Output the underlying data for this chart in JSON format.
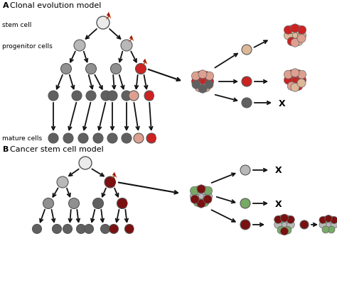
{
  "title_a": "A   Clonal evolution model",
  "title_b": "B   Cancer stem cell model",
  "label_stem": "stem cell",
  "label_prog": "progenitor cells",
  "label_mature": "mature cells",
  "colors": {
    "white_cell": "#ebebeb",
    "light_gray": "#b8b8b8",
    "med_gray": "#909090",
    "dark_gray": "#606060",
    "red_cell": "#cc2222",
    "dark_red": "#7a1010",
    "salmon": "#dda090",
    "peach": "#ddb898",
    "green": "#77aa66",
    "outline": "#606060",
    "bolt_red": "#8b1010"
  }
}
